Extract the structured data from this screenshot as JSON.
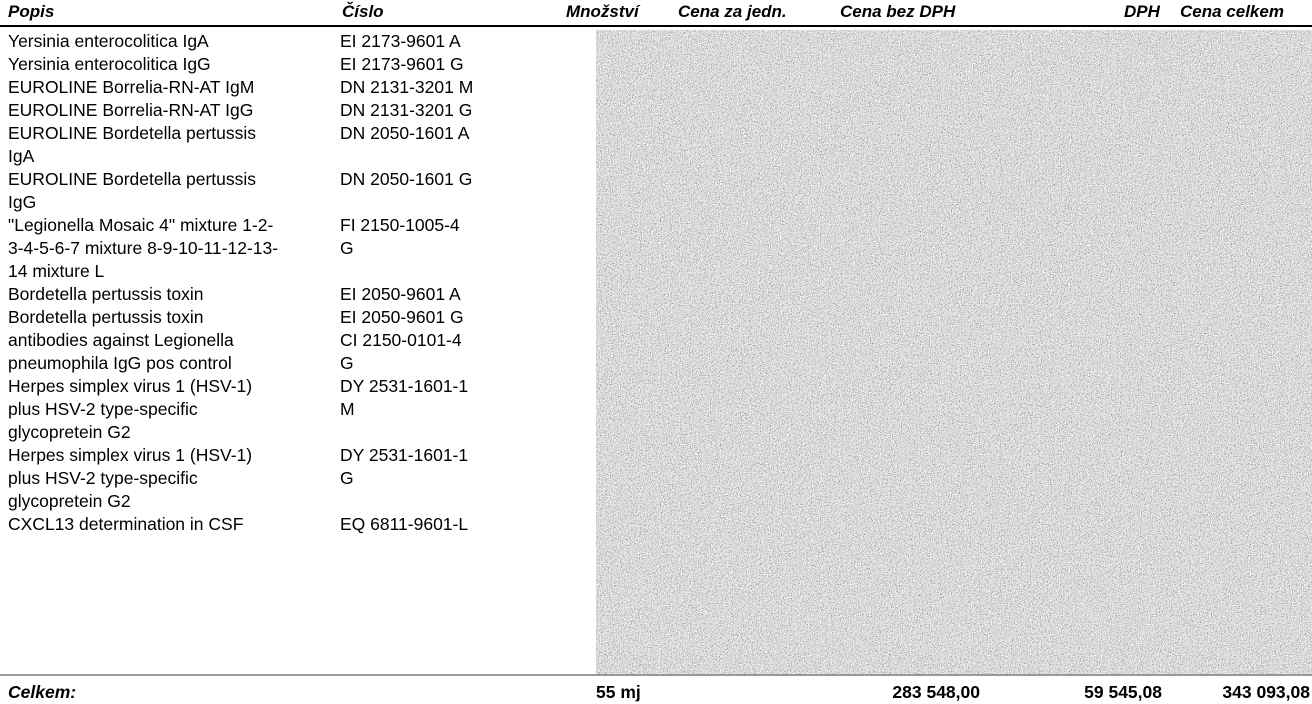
{
  "columns": {
    "popis": "Popis",
    "cislo": "Číslo",
    "mnozstvi": "Množství",
    "cena_jedn": "Cena za jedn.",
    "cena_bez_dph": "Cena bez DPH",
    "dph": "DPH",
    "cena_celkem": "Cena celkem"
  },
  "rows": [
    {
      "desc": "Yersinia enterocolitica IgA",
      "code": "EI 2173-9601 A"
    },
    {
      "desc": "Yersinia enterocolitica IgG",
      "code": "EI 2173-9601 G"
    },
    {
      "desc": "EUROLINE Borrelia-RN-AT IgM",
      "code": "DN 2131-3201 M"
    },
    {
      "desc": "EUROLINE Borrelia-RN-AT IgG",
      "code": "DN 2131-3201 G"
    },
    {
      "desc": "EUROLINE Bordetella pertussis\nIgA",
      "code": "DN 2050-1601 A"
    },
    {
      "desc": "EUROLINE Bordetella pertussis\nIgG",
      "code": "DN 2050-1601 G"
    },
    {
      "desc": "\"Legionella Mosaic 4\" mixture 1-2-\n3-4-5-6-7 mixture 8-9-10-11-12-13-\n14 mixture L",
      "code": "FI 2150-1005-4\nG"
    },
    {
      "desc": "Bordetella pertussis toxin",
      "code": "EI 2050-9601 A"
    },
    {
      "desc": "Bordetella pertussis toxin",
      "code": "EI 2050-9601 G"
    },
    {
      "desc": "antibodies against Legionella\npneumophila  IgG pos control",
      "code": "CI 2150-0101-4\nG"
    },
    {
      "desc": "Herpes simplex virus 1 (HSV-1)\nplus HSV-2 type-specific\nglycopretein G2",
      "code": "DY 2531-1601-1\nM"
    },
    {
      "desc": "Herpes simplex virus 1 (HSV-1)\nplus HSV-2 type-specific\nglycopretein G2",
      "code": "DY 2531-1601-1\nG"
    },
    {
      "desc": "CXCL13 determination in CSF",
      "code": "EQ 6811-9601-L"
    }
  ],
  "totals": {
    "label": "Celkem:",
    "mnozstvi": "55 mj",
    "cena_bez_dph": "283 548,00",
    "dph": "59 545,08",
    "cena_celkem": "343 093,08"
  }
}
